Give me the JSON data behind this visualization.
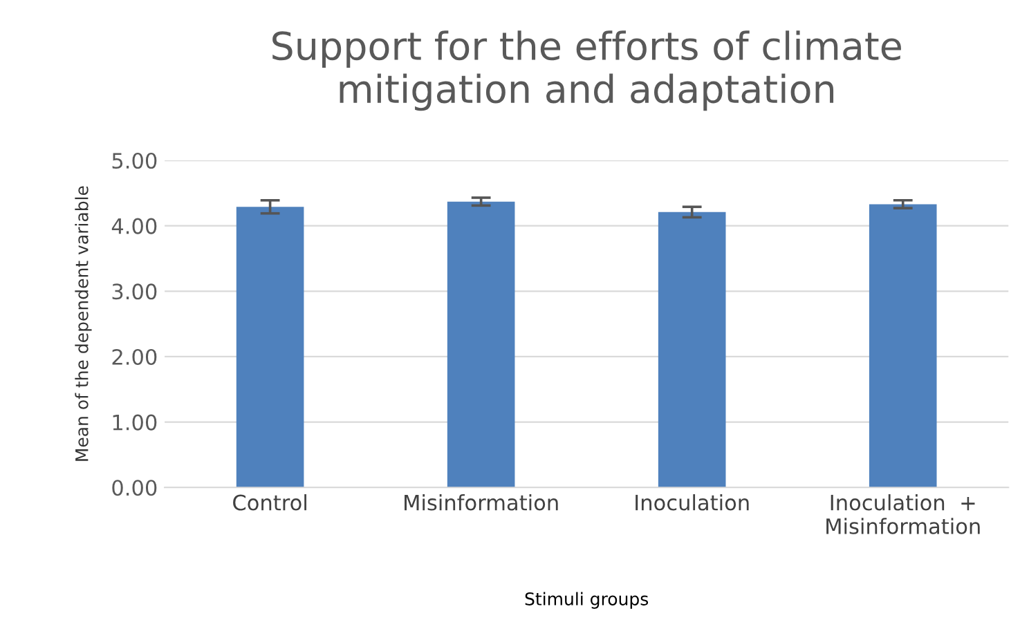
{
  "chart_data": {
    "type": "bar",
    "title": "Support for the efforts of climate\nmitigation and adaptation",
    "xlabel": "Stimuli groups",
    "ylabel": "Mean of the dependent variable",
    "categories": [
      "Control",
      "Misinformation",
      "Inoculation",
      "Inoculation  +\nMisinformation"
    ],
    "values": [
      4.29,
      4.37,
      4.21,
      4.33
    ],
    "errors": [
      0.1,
      0.06,
      0.08,
      0.06
    ],
    "color": "#4f81bd",
    "ylim": [
      0,
      5
    ],
    "yticks": [
      {
        "value": 0,
        "label": "0.00"
      },
      {
        "value": 1,
        "label": "1.00"
      },
      {
        "value": 2,
        "label": "2.00"
      },
      {
        "value": 3,
        "label": "3.00"
      },
      {
        "value": 4,
        "label": "4.00"
      },
      {
        "value": 5,
        "label": "5.00"
      }
    ],
    "grid": "y",
    "legend": false
  }
}
